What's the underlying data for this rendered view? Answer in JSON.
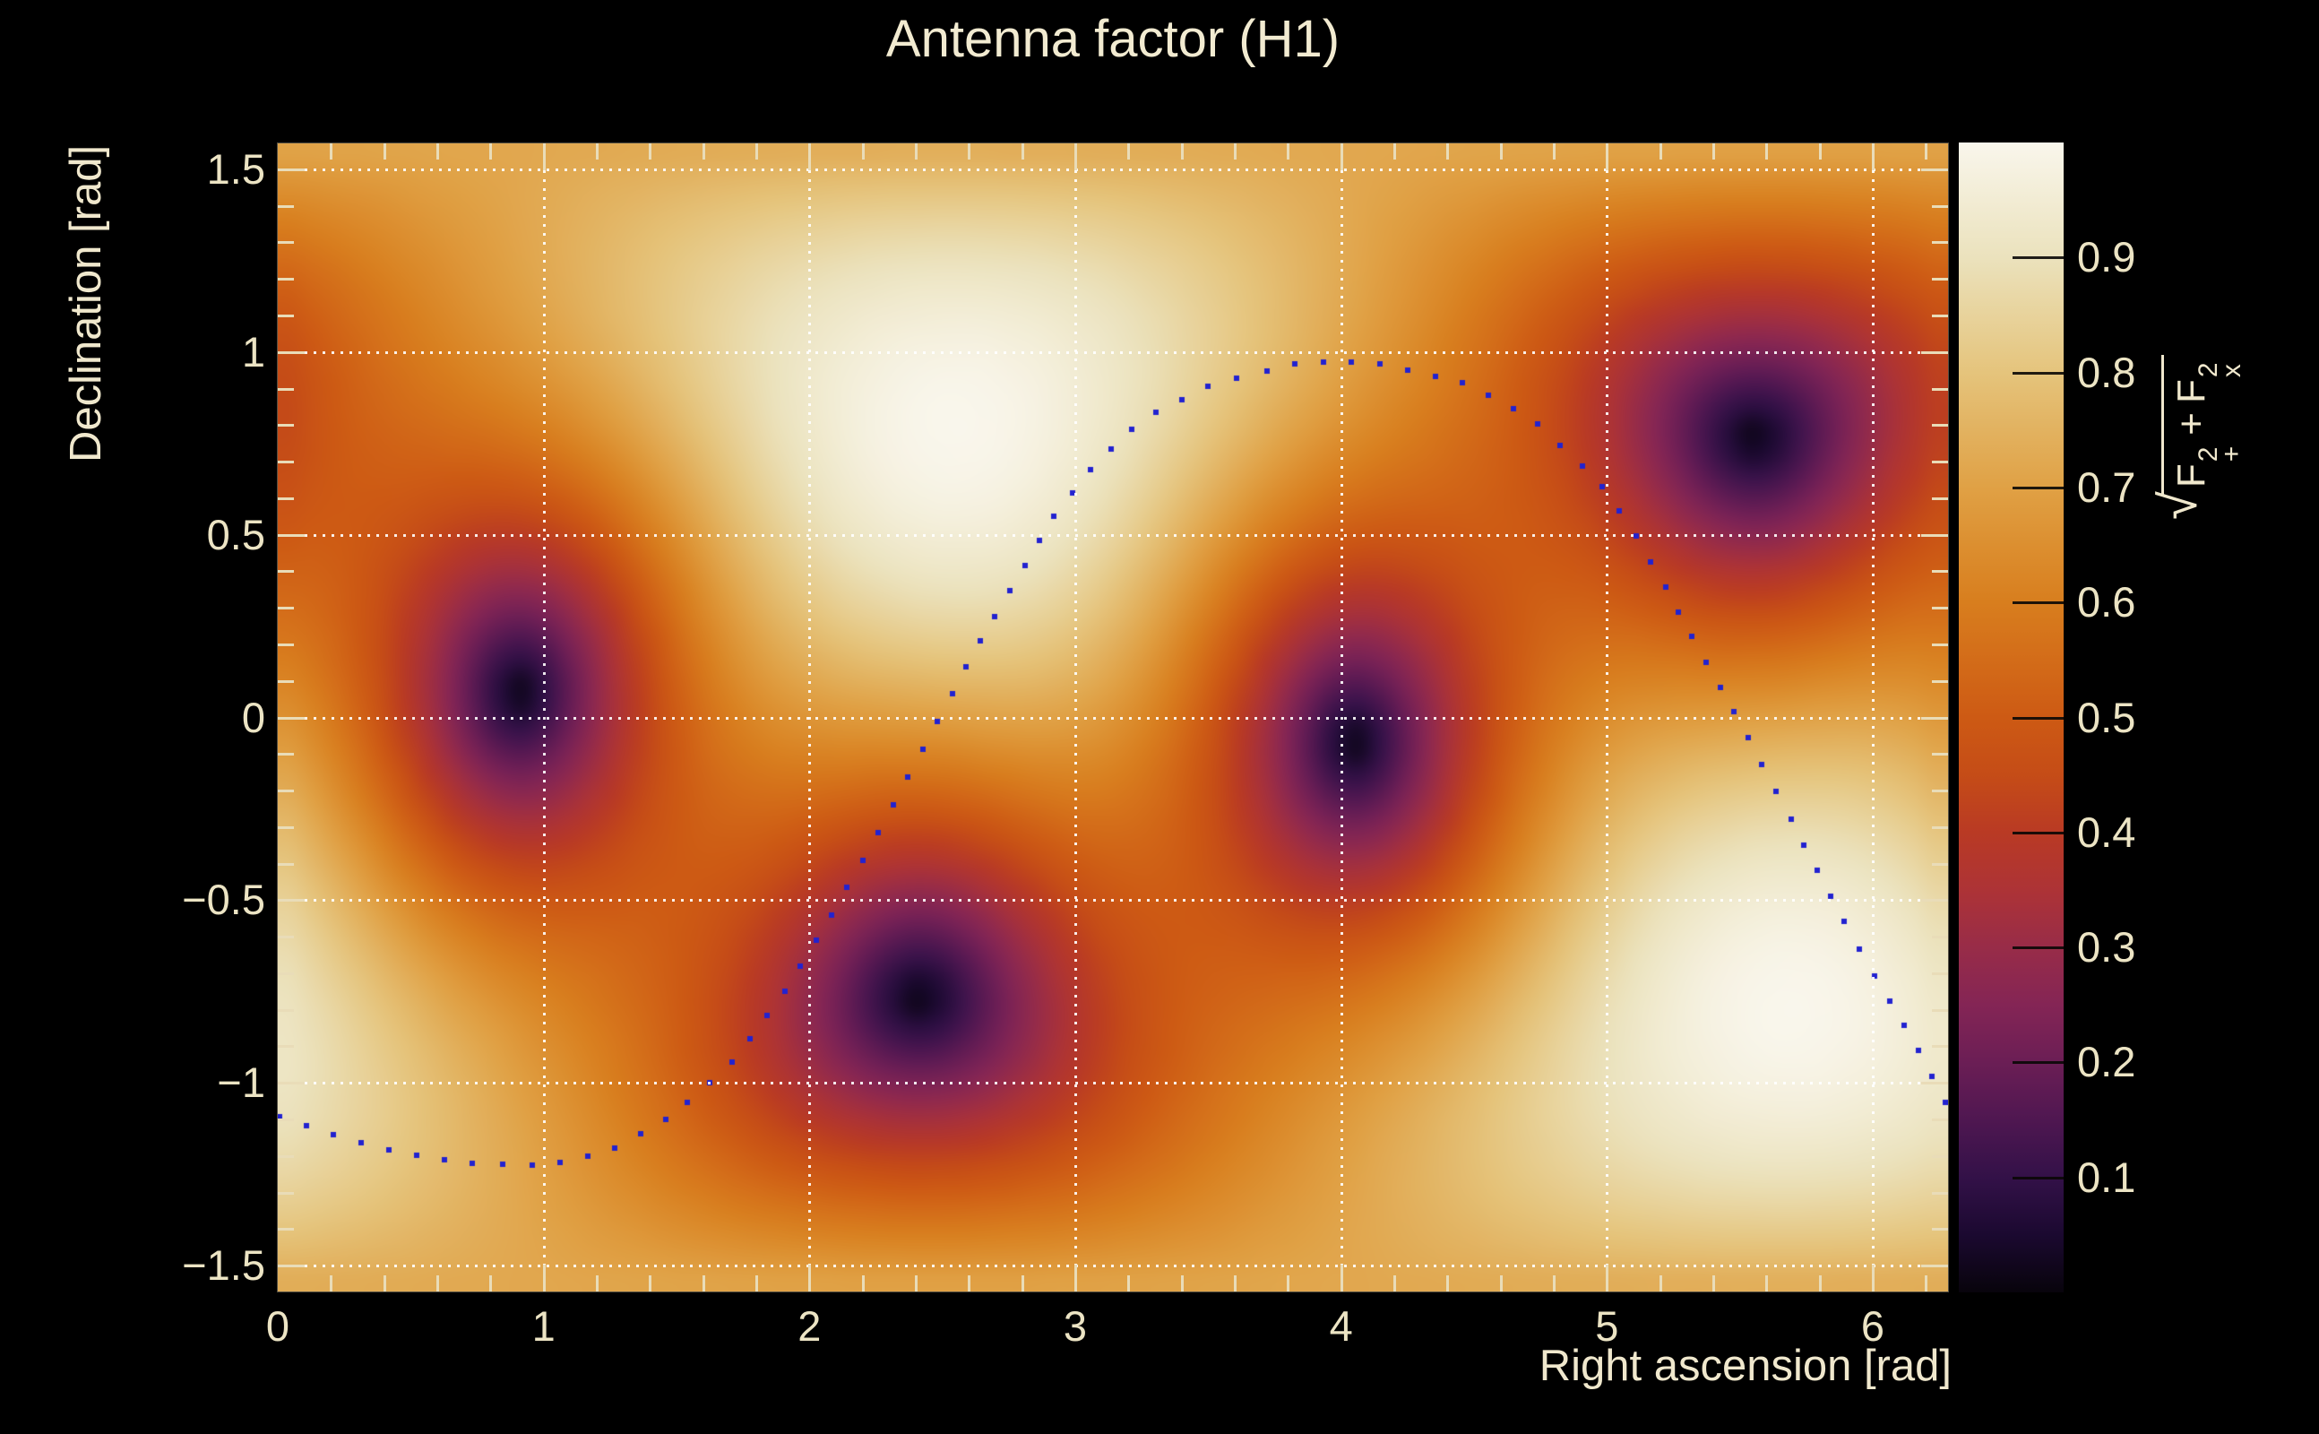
{
  "title": "Antenna factor (H1)",
  "colors": {
    "background": "#000000",
    "text_cream": "#ece4c4",
    "title_cream": "#f2ebd1",
    "tick_cream": "#e9dcb8",
    "grid_white": "#ffffff",
    "marker_blue": "#2222d0",
    "colorbar_tick_dark": "#0a0806"
  },
  "axes": {
    "x": {
      "title": "Right ascension [rad]",
      "range": [
        0,
        6.28319
      ],
      "ticks": [
        {
          "v": 0,
          "label": "0"
        },
        {
          "v": 1,
          "label": "1"
        },
        {
          "v": 2,
          "label": "2"
        },
        {
          "v": 3,
          "label": "3"
        },
        {
          "v": 4,
          "label": "4"
        },
        {
          "v": 5,
          "label": "5"
        },
        {
          "v": 6,
          "label": "6"
        }
      ],
      "minor_step": 0.2,
      "grid_at": [
        1,
        2,
        3,
        4,
        5,
        6
      ]
    },
    "y": {
      "title": "Declination [rad]",
      "range": [
        -1.5708,
        1.5708
      ],
      "ticks": [
        {
          "v": 1.5,
          "label": "1.5"
        },
        {
          "v": 1.0,
          "label": "1"
        },
        {
          "v": 0.5,
          "label": "0.5"
        },
        {
          "v": 0.0,
          "label": "0"
        },
        {
          "v": -0.5,
          "label": "−0.5"
        },
        {
          "v": -1.0,
          "label": "−1"
        },
        {
          "v": -1.5,
          "label": "−1.5"
        }
      ],
      "minor_step": 0.1,
      "grid_at": [
        1.5,
        1.0,
        0.5,
        0.0,
        -0.5,
        -1.0,
        -1.5
      ]
    },
    "z": {
      "radical": "√",
      "parts": {
        "base1": "F",
        "sup1": "2",
        "sub1": "+",
        "op": "+",
        "base2": "F",
        "sup2": "2",
        "sub2": "x"
      },
      "range": [
        0,
        1
      ],
      "ticks": [
        {
          "v": 0.9,
          "label": "0.9"
        },
        {
          "v": 0.8,
          "label": "0.8"
        },
        {
          "v": 0.7,
          "label": "0.7"
        },
        {
          "v": 0.6,
          "label": "0.6"
        },
        {
          "v": 0.5,
          "label": "0.5"
        },
        {
          "v": 0.4,
          "label": "0.4"
        },
        {
          "v": 0.3,
          "label": "0.3"
        },
        {
          "v": 0.2,
          "label": "0.2"
        },
        {
          "v": 0.1,
          "label": "0.1"
        }
      ]
    }
  },
  "chart_data": {
    "type": "heatmap",
    "title": "Antenna factor (H1)",
    "xlabel": "Right ascension [rad]",
    "ylabel": "Declination [rad]",
    "zlabel": "sqrt(F_plus^2 + F_cross^2)",
    "x_range": [
      0,
      6.28319
    ],
    "y_range": [
      -1.5708,
      1.5708
    ],
    "z_range": [
      0,
      1
    ],
    "grid_bins": [
      72,
      50
    ],
    "detector": "H1",
    "maxima_radec": [
      [
        2.55,
        0.8
      ],
      [
        5.7,
        -0.8
      ]
    ],
    "nulls_radec": [
      [
        0.94,
        0.1
      ],
      [
        2.4,
        -0.75
      ],
      [
        4.07,
        -0.09
      ],
      [
        5.5,
        0.74
      ]
    ],
    "palette": [
      [
        0.0,
        "#08040c"
      ],
      [
        0.05,
        "#1b0930"
      ],
      [
        0.1,
        "#331148"
      ],
      [
        0.15,
        "#4f1751"
      ],
      [
        0.2,
        "#6b1e55"
      ],
      [
        0.25,
        "#842555"
      ],
      [
        0.3,
        "#982c48"
      ],
      [
        0.35,
        "#ad3336"
      ],
      [
        0.4,
        "#b93a24"
      ],
      [
        0.45,
        "#c54c17"
      ],
      [
        0.5,
        "#cd5a14"
      ],
      [
        0.55,
        "#d36c19"
      ],
      [
        0.6,
        "#d87e1e"
      ],
      [
        0.65,
        "#dc8f30"
      ],
      [
        0.7,
        "#e0a145"
      ],
      [
        0.75,
        "#e2b260"
      ],
      [
        0.8,
        "#e5c47c"
      ],
      [
        0.85,
        "#e8d39c"
      ],
      [
        0.9,
        "#ebe2bd"
      ],
      [
        0.95,
        "#f2ecd4"
      ],
      [
        1.0,
        "#f9f6ec"
      ]
    ],
    "overlay_curve": {
      "style": "dotted",
      "marker": "square",
      "marker_px": 6,
      "spacing_px": 31,
      "color": "#2222d0",
      "points": [
        [
          0.0,
          -1.09
        ],
        [
          0.2,
          -1.14
        ],
        [
          0.45,
          -1.19
        ],
        [
          0.7,
          -1.22
        ],
        [
          0.95,
          -1.225
        ],
        [
          1.1,
          -1.215
        ],
        [
          1.3,
          -1.17
        ],
        [
          1.5,
          -1.08
        ],
        [
          1.7,
          -0.95
        ],
        [
          1.9,
          -0.76
        ],
        [
          2.1,
          -0.52
        ],
        [
          2.3,
          -0.26
        ],
        [
          2.49,
          0.0
        ],
        [
          2.65,
          0.22
        ],
        [
          2.79,
          0.39
        ],
        [
          2.92,
          0.55
        ],
        [
          3.07,
          0.69
        ],
        [
          3.26,
          0.82
        ],
        [
          3.52,
          0.913
        ],
        [
          3.82,
          0.967
        ],
        [
          3.99,
          0.975
        ],
        [
          4.16,
          0.967
        ],
        [
          4.47,
          0.913
        ],
        [
          4.72,
          0.817
        ],
        [
          4.97,
          0.645
        ],
        [
          5.11,
          0.497
        ],
        [
          5.23,
          0.343
        ],
        [
          5.35,
          0.18
        ],
        [
          5.49,
          0.0
        ],
        [
          5.65,
          -0.22
        ],
        [
          5.85,
          -0.5
        ],
        [
          6.0,
          -0.7
        ],
        [
          6.15,
          -0.88
        ],
        [
          6.283,
          -1.07
        ]
      ]
    }
  }
}
